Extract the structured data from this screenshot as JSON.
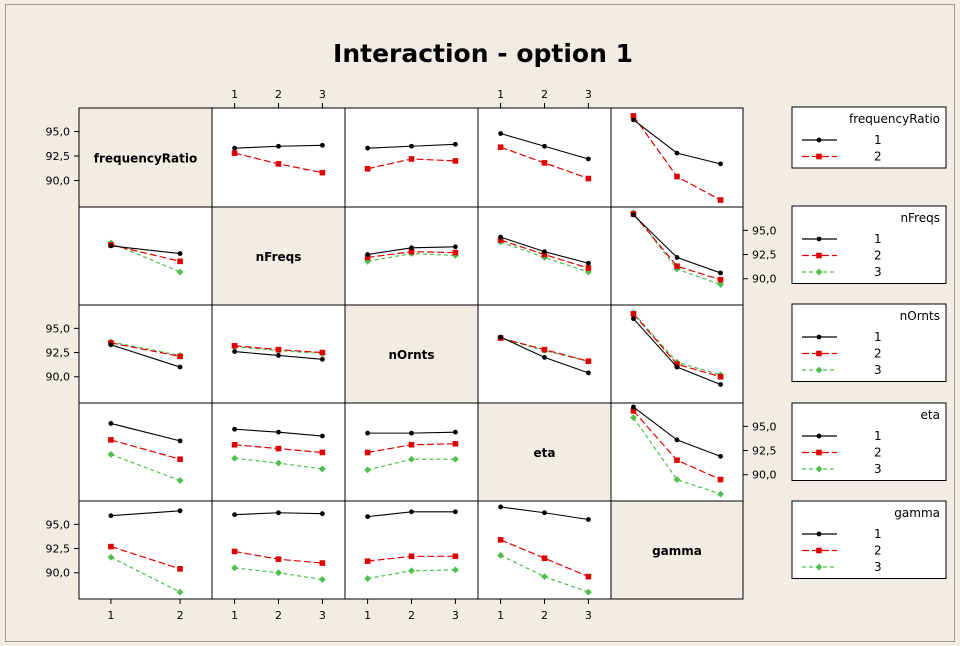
{
  "chart_data": {
    "type": "line",
    "title": "Interaction - option 1",
    "variables": [
      {
        "name": "frequencyRatio",
        "levels": [
          "1",
          "2"
        ]
      },
      {
        "name": "nFreqs",
        "levels": [
          "1",
          "2",
          "3"
        ]
      },
      {
        "name": "nOrnts",
        "levels": [
          "1",
          "2",
          "3"
        ]
      },
      {
        "name": "eta",
        "levels": [
          "1",
          "2",
          "3"
        ]
      },
      {
        "name": "gamma",
        "levels": [
          "1",
          "2",
          "3"
        ]
      }
    ],
    "y_ticks": [
      "95,0",
      "92,5",
      "90,0"
    ],
    "ylim": [
      87.7,
      97.0
    ],
    "series_colors": [
      "#000000",
      "#e00000",
      "#4cbf4c"
    ],
    "marker_shapes": [
      "circle",
      "square",
      "diamond"
    ],
    "legends": [
      {
        "title": "frequencyRatio",
        "levels": [
          "1",
          "2"
        ]
      },
      {
        "title": "nFreqs",
        "levels": [
          "1",
          "2",
          "3"
        ]
      },
      {
        "title": "nOrnts",
        "levels": [
          "1",
          "2",
          "3"
        ]
      },
      {
        "title": "eta",
        "levels": [
          "1",
          "2",
          "3"
        ]
      },
      {
        "title": "gamma",
        "levels": [
          "1",
          "2",
          "3"
        ]
      }
    ],
    "panels": [
      {
        "row": 0,
        "col": 1,
        "series": [
          [
            93.3,
            93.5,
            93.6
          ],
          [
            92.8,
            91.7,
            90.8
          ]
        ]
      },
      {
        "row": 0,
        "col": 2,
        "series": [
          [
            93.3,
            93.5,
            93.7
          ],
          [
            91.2,
            92.2,
            92.0
          ]
        ]
      },
      {
        "row": 0,
        "col": 3,
        "series": [
          [
            94.8,
            93.5,
            92.2
          ],
          [
            93.4,
            91.8,
            90.2
          ]
        ]
      },
      {
        "row": 0,
        "col": 4,
        "series": [
          [
            96.2,
            92.8,
            91.7
          ],
          [
            96.6,
            90.4,
            88.0
          ]
        ]
      },
      {
        "row": 1,
        "col": 0,
        "series": [
          [
            93.4,
            92.6
          ],
          [
            93.5,
            91.8
          ],
          [
            93.7,
            90.7
          ]
        ]
      },
      {
        "row": 1,
        "col": 2,
        "series": [
          [
            92.5,
            93.2,
            93.3
          ],
          [
            92.2,
            92.8,
            92.7
          ],
          [
            91.8,
            92.6,
            92.4
          ]
        ]
      },
      {
        "row": 1,
        "col": 3,
        "series": [
          [
            94.3,
            92.8,
            91.6
          ],
          [
            94.0,
            92.5,
            91.1
          ],
          [
            93.8,
            92.2,
            90.7
          ]
        ]
      },
      {
        "row": 1,
        "col": 4,
        "series": [
          [
            96.6,
            92.2,
            90.6
          ],
          [
            96.7,
            91.3,
            89.9
          ],
          [
            96.8,
            91.0,
            89.4
          ]
        ]
      },
      {
        "row": 2,
        "col": 0,
        "series": [
          [
            93.3,
            91.0
          ],
          [
            93.5,
            92.1
          ],
          [
            93.6,
            92.2
          ]
        ]
      },
      {
        "row": 2,
        "col": 1,
        "series": [
          [
            92.6,
            92.2,
            91.8
          ],
          [
            93.2,
            92.8,
            92.5
          ],
          [
            93.1,
            92.7,
            92.4
          ]
        ]
      },
      {
        "row": 2,
        "col": 3,
        "series": [
          [
            94.1,
            92.0,
            90.4
          ],
          [
            94.0,
            92.8,
            91.6
          ],
          [
            94.0,
            92.7,
            91.6
          ]
        ]
      },
      {
        "row": 2,
        "col": 4,
        "series": [
          [
            96.0,
            91.0,
            89.2
          ],
          [
            96.5,
            91.3,
            90.0
          ],
          [
            96.6,
            91.5,
            90.2
          ]
        ]
      },
      {
        "row": 3,
        "col": 0,
        "series": [
          [
            95.3,
            93.5
          ],
          [
            93.6,
            91.6
          ],
          [
            92.1,
            89.4
          ]
        ]
      },
      {
        "row": 3,
        "col": 1,
        "series": [
          [
            94.7,
            94.4,
            94.0
          ],
          [
            93.1,
            92.7,
            92.3
          ],
          [
            91.7,
            91.2,
            90.6
          ]
        ]
      },
      {
        "row": 3,
        "col": 2,
        "series": [
          [
            94.3,
            94.3,
            94.4
          ],
          [
            92.3,
            93.1,
            93.2
          ],
          [
            90.5,
            91.6,
            91.6
          ]
        ]
      },
      {
        "row": 3,
        "col": 4,
        "series": [
          [
            97.0,
            93.6,
            91.9
          ],
          [
            96.6,
            91.5,
            89.5
          ],
          [
            95.9,
            89.5,
            88.0
          ]
        ]
      },
      {
        "row": 4,
        "col": 0,
        "series": [
          [
            95.9,
            96.4
          ],
          [
            92.7,
            90.4
          ],
          [
            91.6,
            88.0
          ]
        ]
      },
      {
        "row": 4,
        "col": 1,
        "series": [
          [
            96.0,
            96.2,
            96.1
          ],
          [
            92.2,
            91.4,
            91.0
          ],
          [
            90.5,
            90.0,
            89.3
          ]
        ]
      },
      {
        "row": 4,
        "col": 2,
        "series": [
          [
            95.8,
            96.3,
            96.3
          ],
          [
            91.2,
            91.7,
            91.7
          ],
          [
            89.4,
            90.2,
            90.3
          ]
        ]
      },
      {
        "row": 4,
        "col": 3,
        "series": [
          [
            96.8,
            96.2,
            95.5
          ],
          [
            93.4,
            91.5,
            89.6
          ],
          [
            91.8,
            89.6,
            88.0
          ]
        ]
      }
    ]
  }
}
